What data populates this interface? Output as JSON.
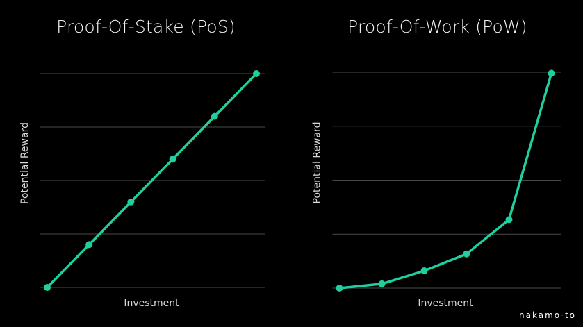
{
  "chart_data": [
    {
      "type": "line",
      "title": "Proof-Of-Stake (PoS)",
      "xlabel": "Investment",
      "ylabel": "Potential Reward",
      "x": [
        0,
        1,
        2,
        3,
        4,
        5
      ],
      "series": [
        {
          "values": [
            0,
            1,
            2,
            3,
            4,
            5
          ]
        }
      ],
      "xlim": [
        0,
        5
      ],
      "ylim": [
        0,
        5
      ],
      "ygrid_count": 5,
      "grid": true,
      "tick_labels": false,
      "line_color": "#1fcf9e",
      "grid_color": "#4a4a4a",
      "background": "#000000"
    },
    {
      "type": "line",
      "title": "Proof-Of-Work (PoW)",
      "xlabel": "Investment",
      "ylabel": "Potential Reward",
      "x": [
        0,
        1,
        2,
        3,
        4,
        5
      ],
      "series": [
        {
          "values": [
            0,
            0.08,
            0.33,
            0.65,
            1.3,
            4.08
          ]
        }
      ],
      "xlim": [
        0,
        5
      ],
      "ylim": [
        0,
        4.1
      ],
      "ygrid_count": 5,
      "grid": true,
      "tick_labels": false,
      "line_color": "#1fcf9e",
      "grid_color": "#4a4a4a",
      "background": "#000000"
    }
  ],
  "watermark": {
    "part1": "nakamo",
    "separator": "·",
    "part2": "to"
  }
}
